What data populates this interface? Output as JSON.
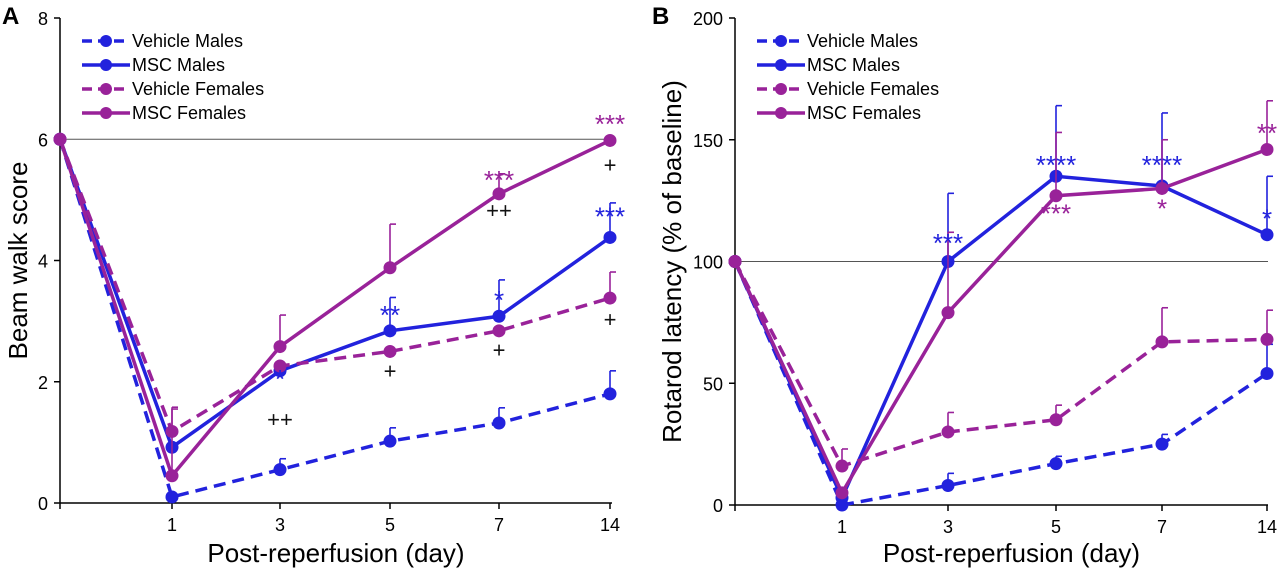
{
  "chart_data": [
    {
      "type": "line",
      "panel_label": "A",
      "xlabel": "Post-reperfusion (day)",
      "ylabel": "Beam walk score",
      "x_ticks": [
        "",
        "1",
        "3",
        "5",
        "7",
        "14"
      ],
      "y_ticks": [
        "0",
        "2",
        "4",
        "6",
        "8"
      ],
      "ylim": [
        0,
        8
      ],
      "reference_line": 6,
      "legend_position": "top-left",
      "series": [
        {
          "name": "Vehicle Males",
          "color": "#2222dd",
          "dashed": true,
          "values": [
            6,
            0.1,
            0.55,
            1.02,
            1.32,
            1.8
          ],
          "errors": [
            0,
            0,
            0.18,
            0.22,
            0.25,
            0.38
          ]
        },
        {
          "name": "MSC Males",
          "color": "#2222dd",
          "dashed": false,
          "values": [
            6,
            0.92,
            2.18,
            2.84,
            3.08,
            4.38
          ],
          "errors": [
            0,
            0,
            0,
            0.55,
            0.6,
            0.57
          ]
        },
        {
          "name": "Vehicle Females",
          "color": "#992299",
          "dashed": true,
          "values": [
            6,
            1.18,
            2.26,
            2.5,
            2.84,
            3.38
          ],
          "errors": [
            0,
            0.4,
            0,
            0,
            0,
            0.43
          ]
        },
        {
          "name": "MSC Females",
          "color": "#992299",
          "dashed": false,
          "values": [
            6,
            0.45,
            2.58,
            3.88,
            5.1,
            5.98
          ],
          "errors": [
            0,
            1.1,
            0.52,
            0.72,
            0.33,
            0
          ]
        }
      ],
      "annotations": [
        {
          "text": "*",
          "x": 2,
          "y": 1.9,
          "color": "#2222dd"
        },
        {
          "text": "++",
          "x": 2,
          "y": 1.25,
          "color": "#111111"
        },
        {
          "text": "**",
          "x": 3,
          "y": 2.95,
          "color": "#2222dd"
        },
        {
          "text": "+",
          "x": 3,
          "y": 2.05,
          "color": "#111111"
        },
        {
          "text": "*",
          "x": 4,
          "y": 3.2,
          "color": "#2222dd"
        },
        {
          "text": "+",
          "x": 4,
          "y": 2.4,
          "color": "#111111"
        },
        {
          "text": "***",
          "x": 4,
          "y": 5.18,
          "color": "#992299"
        },
        {
          "text": "++",
          "x": 4,
          "y": 4.7,
          "color": "#111111"
        },
        {
          "text": "***",
          "x": 5,
          "y": 4.58,
          "color": "#2222dd"
        },
        {
          "text": "+",
          "x": 5,
          "y": 2.9,
          "color": "#111111"
        },
        {
          "text": "***",
          "x": 5,
          "y": 6.1,
          "color": "#992299"
        },
        {
          "text": "+",
          "x": 5,
          "y": 5.45,
          "color": "#111111"
        }
      ]
    },
    {
      "type": "line",
      "panel_label": "B",
      "xlabel": "Post-reperfusion (day)",
      "ylabel": "Rotarod latency (% of baseline)",
      "x_ticks": [
        "",
        "1",
        "3",
        "5",
        "7",
        "14"
      ],
      "y_ticks": [
        "0",
        "50",
        "100",
        "150",
        "200"
      ],
      "ylim": [
        0,
        200
      ],
      "reference_line": 100,
      "legend_position": "top-left",
      "series": [
        {
          "name": "Vehicle Males",
          "color": "#2222dd",
          "dashed": true,
          "values": [
            100,
            0,
            8,
            17,
            25,
            54
          ],
          "errors": [
            0,
            0,
            5,
            3,
            4,
            12
          ]
        },
        {
          "name": "MSC Males",
          "color": "#2222dd",
          "dashed": false,
          "values": [
            100,
            3,
            100,
            135,
            131,
            111
          ],
          "errors": [
            0,
            0,
            28,
            29,
            30,
            24
          ]
        },
        {
          "name": "Vehicle Females",
          "color": "#992299",
          "dashed": true,
          "values": [
            100,
            16,
            30,
            35,
            67,
            68
          ],
          "errors": [
            0,
            7,
            8,
            6,
            14,
            12
          ]
        },
        {
          "name": "MSC Females",
          "color": "#992299",
          "dashed": false,
          "values": [
            100,
            5,
            79,
            127,
            130,
            146
          ],
          "errors": [
            0,
            0,
            33,
            26,
            20,
            20
          ]
        }
      ],
      "annotations": [
        {
          "text": "***",
          "x": 2,
          "y": 104,
          "color": "#2222dd"
        },
        {
          "text": "****",
          "x": 3,
          "y": 136,
          "color": "#2222dd"
        },
        {
          "text": "***",
          "x": 3,
          "y": 116,
          "color": "#992299"
        },
        {
          "text": "****",
          "x": 4,
          "y": 136,
          "color": "#2222dd"
        },
        {
          "text": "*",
          "x": 4,
          "y": 118,
          "color": "#992299"
        },
        {
          "text": "**",
          "x": 5,
          "y": 149,
          "color": "#992299"
        },
        {
          "text": "*",
          "x": 5,
          "y": 114,
          "color": "#2222dd"
        }
      ]
    }
  ]
}
